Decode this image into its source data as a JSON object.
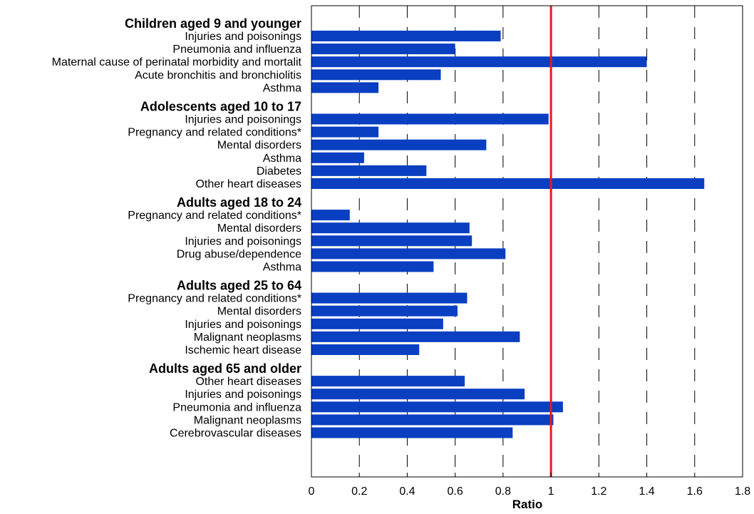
{
  "chart_data": {
    "type": "bar",
    "orientation": "horizontal",
    "xlabel": "Ratio",
    "xlim": [
      0,
      1.8
    ],
    "xticks": [
      0,
      0.2,
      0.4,
      0.6,
      0.8,
      1,
      1.2,
      1.4,
      1.6,
      1.8
    ],
    "grid": "vertical dashed",
    "reference_line": {
      "x": 1,
      "color": "#e41a1c"
    },
    "bar_color": "#0a3fc2",
    "groups": [
      {
        "title": "Children aged 9 and younger",
        "categories": [
          "Injuries and poisonings",
          "Pneumonia and influenza",
          "Maternal cause of perinatal morbidity and mortalit",
          "Acute bronchitis and bronchiolitis",
          "Asthma"
        ],
        "values": [
          0.79,
          0.6,
          1.4,
          0.54,
          0.28
        ]
      },
      {
        "title": "Adolescents aged 10 to 17",
        "categories": [
          "Injuries and poisonings",
          "Pregnancy and related conditions*",
          "Mental disorders",
          "Asthma",
          "Diabetes",
          "Other heart diseases"
        ],
        "values": [
          0.99,
          0.28,
          0.73,
          0.22,
          0.48,
          1.64
        ]
      },
      {
        "title": "Adults aged 18 to 24",
        "categories": [
          "Pregnancy and related conditions*",
          "Mental disorders",
          "Injuries and poisonings",
          "Drug abuse/dependence",
          "Asthma"
        ],
        "values": [
          0.16,
          0.66,
          0.67,
          0.81,
          0.51
        ]
      },
      {
        "title": "Adults aged 25 to 64",
        "categories": [
          "Pregnancy and related conditions*",
          "Mental disorders",
          "Injuries and poisonings",
          "Malignant neoplasms",
          "Ischemic heart disease"
        ],
        "values": [
          0.65,
          0.61,
          0.55,
          0.87,
          0.45
        ]
      },
      {
        "title": "Adults aged 65 and older",
        "categories": [
          "Other heart diseases",
          "Injuries and poisonings",
          "Pneumonia and influenza",
          "Malignant neoplasms",
          "Cerebrovascular diseases"
        ],
        "values": [
          0.64,
          0.89,
          1.05,
          1.01,
          0.84
        ]
      }
    ]
  }
}
